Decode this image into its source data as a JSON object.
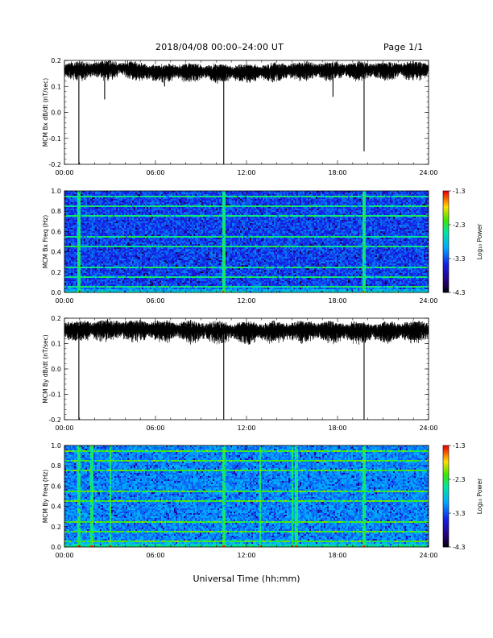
{
  "header": {
    "title": "2018/04/08   00:00–24:00 UT",
    "page": "Page 1/1"
  },
  "xaxis_label": "Universal Time (hh:mm)",
  "chart_data": [
    {
      "type": "line",
      "ylabel": "MCM Bx dB/dt (nT/sec)",
      "x_ticks": [
        "00:00",
        "06:00",
        "12:00",
        "18:00",
        "24:00"
      ],
      "xlim_hours": [
        0,
        24
      ],
      "ylim": [
        -0.2,
        0.2
      ],
      "y_ticks": [
        "0.2",
        "0.1",
        "0.0",
        "-0.1",
        "-0.2"
      ],
      "baseline_segments": [
        [
          0,
          0.17
        ],
        [
          4,
          0.175
        ],
        [
          6,
          0.16
        ],
        [
          8,
          0.165
        ],
        [
          12,
          0.16
        ],
        [
          16,
          0.17
        ],
        [
          20,
          0.17
        ],
        [
          24,
          0.17
        ]
      ],
      "spikes": [
        [
          0.95,
          -0.2
        ],
        [
          2.65,
          0.05
        ],
        [
          6.6,
          0.1
        ],
        [
          10.5,
          -0.2
        ],
        [
          17.7,
          0.06
        ],
        [
          19.75,
          -0.15
        ]
      ],
      "noise_amplitude": 0.03
    },
    {
      "type": "heatmap",
      "ylabel": "MCM Bx Freq (Hz)",
      "x_ticks": [
        "00:00",
        "06:00",
        "12:00",
        "18:00",
        "24:00"
      ],
      "xlim_hours": [
        0,
        24
      ],
      "ylim": [
        0.0,
        1.0
      ],
      "y_ticks": [
        "1.0",
        "0.8",
        "0.6",
        "0.4",
        "0.2",
        "0.0"
      ],
      "colorbar_label": "Log₁₀ Power",
      "colorbar_ticks": [
        "-1.3",
        "-2.3",
        "-3.3",
        "-4.3"
      ],
      "colorbar_range": [
        -4.3,
        -1.3
      ],
      "harmonic_spacing_hz": 0.05,
      "broadband_events_hours": [
        0.95,
        10.5,
        19.75
      ]
    },
    {
      "type": "line",
      "ylabel": "MCM By dB/dt (nT/sec)",
      "x_ticks": [
        "00:00",
        "06:00",
        "12:00",
        "18:00",
        "24:00"
      ],
      "xlim_hours": [
        0,
        24
      ],
      "ylim": [
        -0.2,
        0.2
      ],
      "y_ticks": [
        "0.2",
        "0.1",
        "0.0",
        "-0.1",
        "-0.2"
      ],
      "baseline_segments": [
        [
          0,
          0.16
        ],
        [
          4,
          0.165
        ],
        [
          8,
          0.16
        ],
        [
          12,
          0.155
        ],
        [
          16,
          0.16
        ],
        [
          20,
          0.155
        ],
        [
          24,
          0.16
        ]
      ],
      "spikes": [
        [
          0.95,
          -0.2
        ],
        [
          10.5,
          -0.2
        ],
        [
          19.75,
          -0.2
        ],
        [
          11.2,
          0.12
        ]
      ],
      "noise_amplitude": 0.035
    },
    {
      "type": "heatmap",
      "ylabel": "MCM By Freq (Hz)",
      "x_ticks": [
        "00:00",
        "06:00",
        "12:00",
        "18:00",
        "24:00"
      ],
      "xlim_hours": [
        0,
        24
      ],
      "ylim": [
        0.0,
        1.0
      ],
      "y_ticks": [
        "1.0",
        "0.8",
        "0.6",
        "0.4",
        "0.2",
        "0.0"
      ],
      "colorbar_label": "Log₁₀ Power",
      "colorbar_ticks": [
        "-1.3",
        "-2.3",
        "-3.3",
        "-4.3"
      ],
      "colorbar_range": [
        -4.3,
        -1.3
      ],
      "harmonic_spacing_hz": 0.05,
      "broadband_events_hours": [
        0.95,
        1.8,
        3.0,
        10.5,
        12.9,
        15.0,
        15.3,
        19.75
      ]
    }
  ]
}
